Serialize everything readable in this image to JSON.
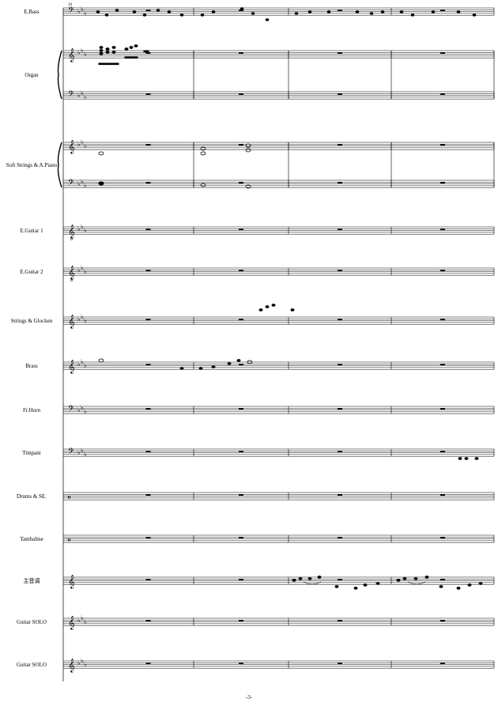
{
  "page": {
    "number_label": "-3-",
    "first_measure_number": "10"
  },
  "instruments": [
    {
      "name": "E.Bass",
      "clef": "bass",
      "key_flats": 3,
      "staves": 1
    },
    {
      "name": "Organ",
      "clef": "treble+bass",
      "key_flats": 3,
      "staves": 2
    },
    {
      "name": "Soft Strings & A.Piano",
      "clef": "treble+bass",
      "key_flats": 3,
      "staves": 2
    },
    {
      "name": "E.Guitar 1",
      "clef": "treble8",
      "key_flats": 3,
      "staves": 1
    },
    {
      "name": "E.Guitar 2",
      "clef": "treble8",
      "key_flats": 3,
      "staves": 1
    },
    {
      "name": "Strings & Glocken",
      "clef": "treble",
      "key_flats": 3,
      "staves": 1
    },
    {
      "name": "Brass",
      "clef": "treble",
      "key_flats": 3,
      "staves": 1
    },
    {
      "name": "Fr.Horn",
      "clef": "bass",
      "key_flats": 3,
      "staves": 1
    },
    {
      "name": "Timpani",
      "clef": "bass",
      "key_flats": 3,
      "staves": 1
    },
    {
      "name": "Drums & SE.",
      "clef": "percussion",
      "key_flats": 0,
      "staves": 1
    },
    {
      "name": "Tambaline",
      "clef": "percussion",
      "key_flats": 0,
      "staves": 1
    },
    {
      "name": "主音调",
      "clef": "treble",
      "key_flats": 0,
      "staves": 1
    },
    {
      "name": "Guitar SOLO",
      "clef": "treble",
      "key_flats": 3,
      "staves": 1
    },
    {
      "name": "Guitar SOLO",
      "clef": "treble",
      "key_flats": 3,
      "staves": 1
    }
  ]
}
